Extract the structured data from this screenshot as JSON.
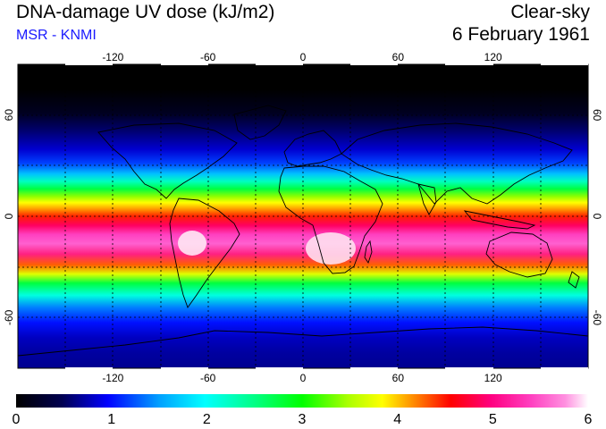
{
  "header": {
    "title": "DNA-damage UV dose (kJ/m2)",
    "source": "MSR - KNMI",
    "mode": "Clear-sky",
    "date": "6 February 1961"
  },
  "map": {
    "lon_ticks": [
      "-120",
      "-60",
      "0",
      "60",
      "120"
    ],
    "lat_ticks": [
      "60",
      "0",
      "-60"
    ],
    "lon_values": [
      -120,
      -60,
      0,
      60,
      120
    ],
    "lat_values": [
      60,
      0,
      -60
    ],
    "gridline_lons": [
      -150,
      -120,
      -90,
      -60,
      -30,
      0,
      30,
      60,
      90,
      120,
      150
    ],
    "gridline_lats": [
      -60,
      -30,
      0,
      30,
      60
    ],
    "lon_range": [
      -180,
      180
    ],
    "lat_range": [
      -90,
      90
    ]
  },
  "colorbar": {
    "labels": [
      "0",
      "1",
      "2",
      "3",
      "4",
      "5",
      "6"
    ],
    "range": [
      0,
      6
    ],
    "colors": [
      "#000000",
      "#000060",
      "#0000ff",
      "#00a0ff",
      "#00ffff",
      "#00ff80",
      "#00ff00",
      "#aaff00",
      "#ffff00",
      "#ff8000",
      "#ff0000",
      "#ff0080",
      "#ff40c0",
      "#ff90e0",
      "#ffffff"
    ]
  },
  "chart_data": {
    "type": "heatmap",
    "title": "DNA-damage UV dose (kJ/m2)",
    "subtitle": "Clear-sky, 6 February 1961",
    "variable": "DNA-damage UV dose",
    "units": "kJ/m2",
    "colorbar_range": [
      0,
      6
    ],
    "latitude_profile": [
      {
        "lat": 90,
        "dose": 0.0
      },
      {
        "lat": 75,
        "dose": 0.05
      },
      {
        "lat": 65,
        "dose": 0.2
      },
      {
        "lat": 55,
        "dose": 0.7
      },
      {
        "lat": 45,
        "dose": 1.3
      },
      {
        "lat": 35,
        "dose": 2.1
      },
      {
        "lat": 25,
        "dose": 2.9
      },
      {
        "lat": 15,
        "dose": 3.8
      },
      {
        "lat": 5,
        "dose": 4.5
      },
      {
        "lat": -5,
        "dose": 5.1
      },
      {
        "lat": -15,
        "dose": 5.3
      },
      {
        "lat": -25,
        "dose": 4.7
      },
      {
        "lat": -35,
        "dose": 3.6
      },
      {
        "lat": -45,
        "dose": 2.4
      },
      {
        "lat": -55,
        "dose": 1.5
      },
      {
        "lat": -65,
        "dose": 0.9
      },
      {
        "lat": -75,
        "dose": 0.7
      },
      {
        "lat": -90,
        "dose": 0.6
      }
    ]
  }
}
